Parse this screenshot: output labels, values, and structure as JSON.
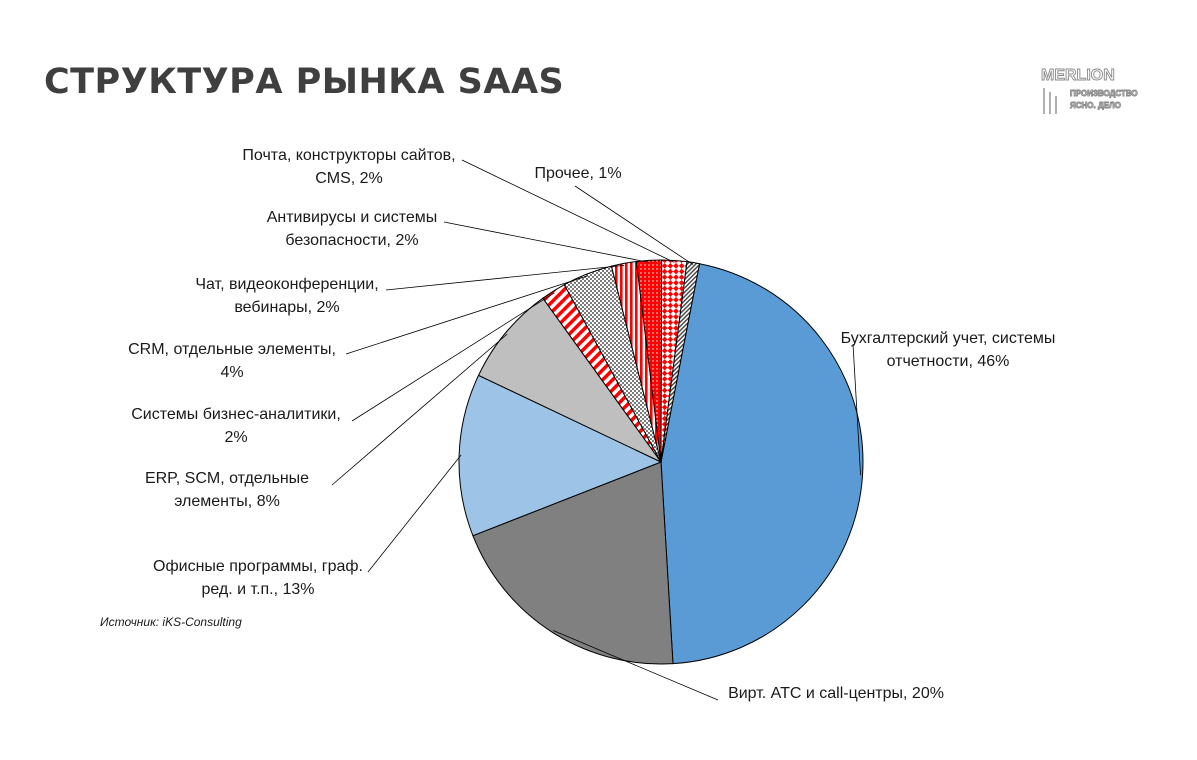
{
  "title": "СТРУКТУРА РЫНКА SAAS",
  "logo": {
    "brand": "MERLION",
    "line1": "ПРОИЗВОДСТВО",
    "line2": "ЯСНО. ДЕЛО"
  },
  "source": "Источник: iKS-Consulting",
  "chart_data": {
    "type": "pie",
    "title": "",
    "unit": "%",
    "slices": [
      {
        "label_lines": [
          "Бухгалтерский учет, системы",
          "отчетности, 46%"
        ],
        "value": 46,
        "color": "#5b9bd5",
        "pattern": "solid"
      },
      {
        "label_lines": [
          "Вирт. АТС и call-центры, 20%"
        ],
        "value": 20,
        "color": "#808080",
        "pattern": "solid"
      },
      {
        "label_lines": [
          "Офисные программы, граф.",
          "ред. и т.п., 13%"
        ],
        "value": 13,
        "color": "#9dc3e6",
        "pattern": "solid"
      },
      {
        "label_lines": [
          "ERP, SCM, отдельные",
          "элементы, 8%"
        ],
        "value": 8,
        "color": "#bfbfbf",
        "pattern": "solid"
      },
      {
        "label_lines": [
          "Системы бизнес-аналитики,",
          "2%"
        ],
        "value": 2,
        "color": "#ff0000",
        "pattern": "diagonal"
      },
      {
        "label_lines": [
          "CRM, отдельные элементы,",
          "4%"
        ],
        "value": 4,
        "color": "#808080",
        "pattern": "checker"
      },
      {
        "label_lines": [
          "Чат, видеоконференции,",
          "вебинары, 2%"
        ],
        "value": 2,
        "color": "#ff0000",
        "pattern": "vertical"
      },
      {
        "label_lines": [
          "Антивирусы и системы",
          "безопасности, 2%"
        ],
        "value": 2,
        "color": "#ff0000",
        "pattern": "dots"
      },
      {
        "label_lines": [
          "Почта, конструкторы сайтов,",
          "CMS, 2%"
        ],
        "value": 2,
        "color": "#ff0000",
        "pattern": "checker-large"
      },
      {
        "label_lines": [
          "Прочее, 1%"
        ],
        "value": 1,
        "color": "#404040",
        "pattern": "fine-diagonal"
      }
    ]
  }
}
